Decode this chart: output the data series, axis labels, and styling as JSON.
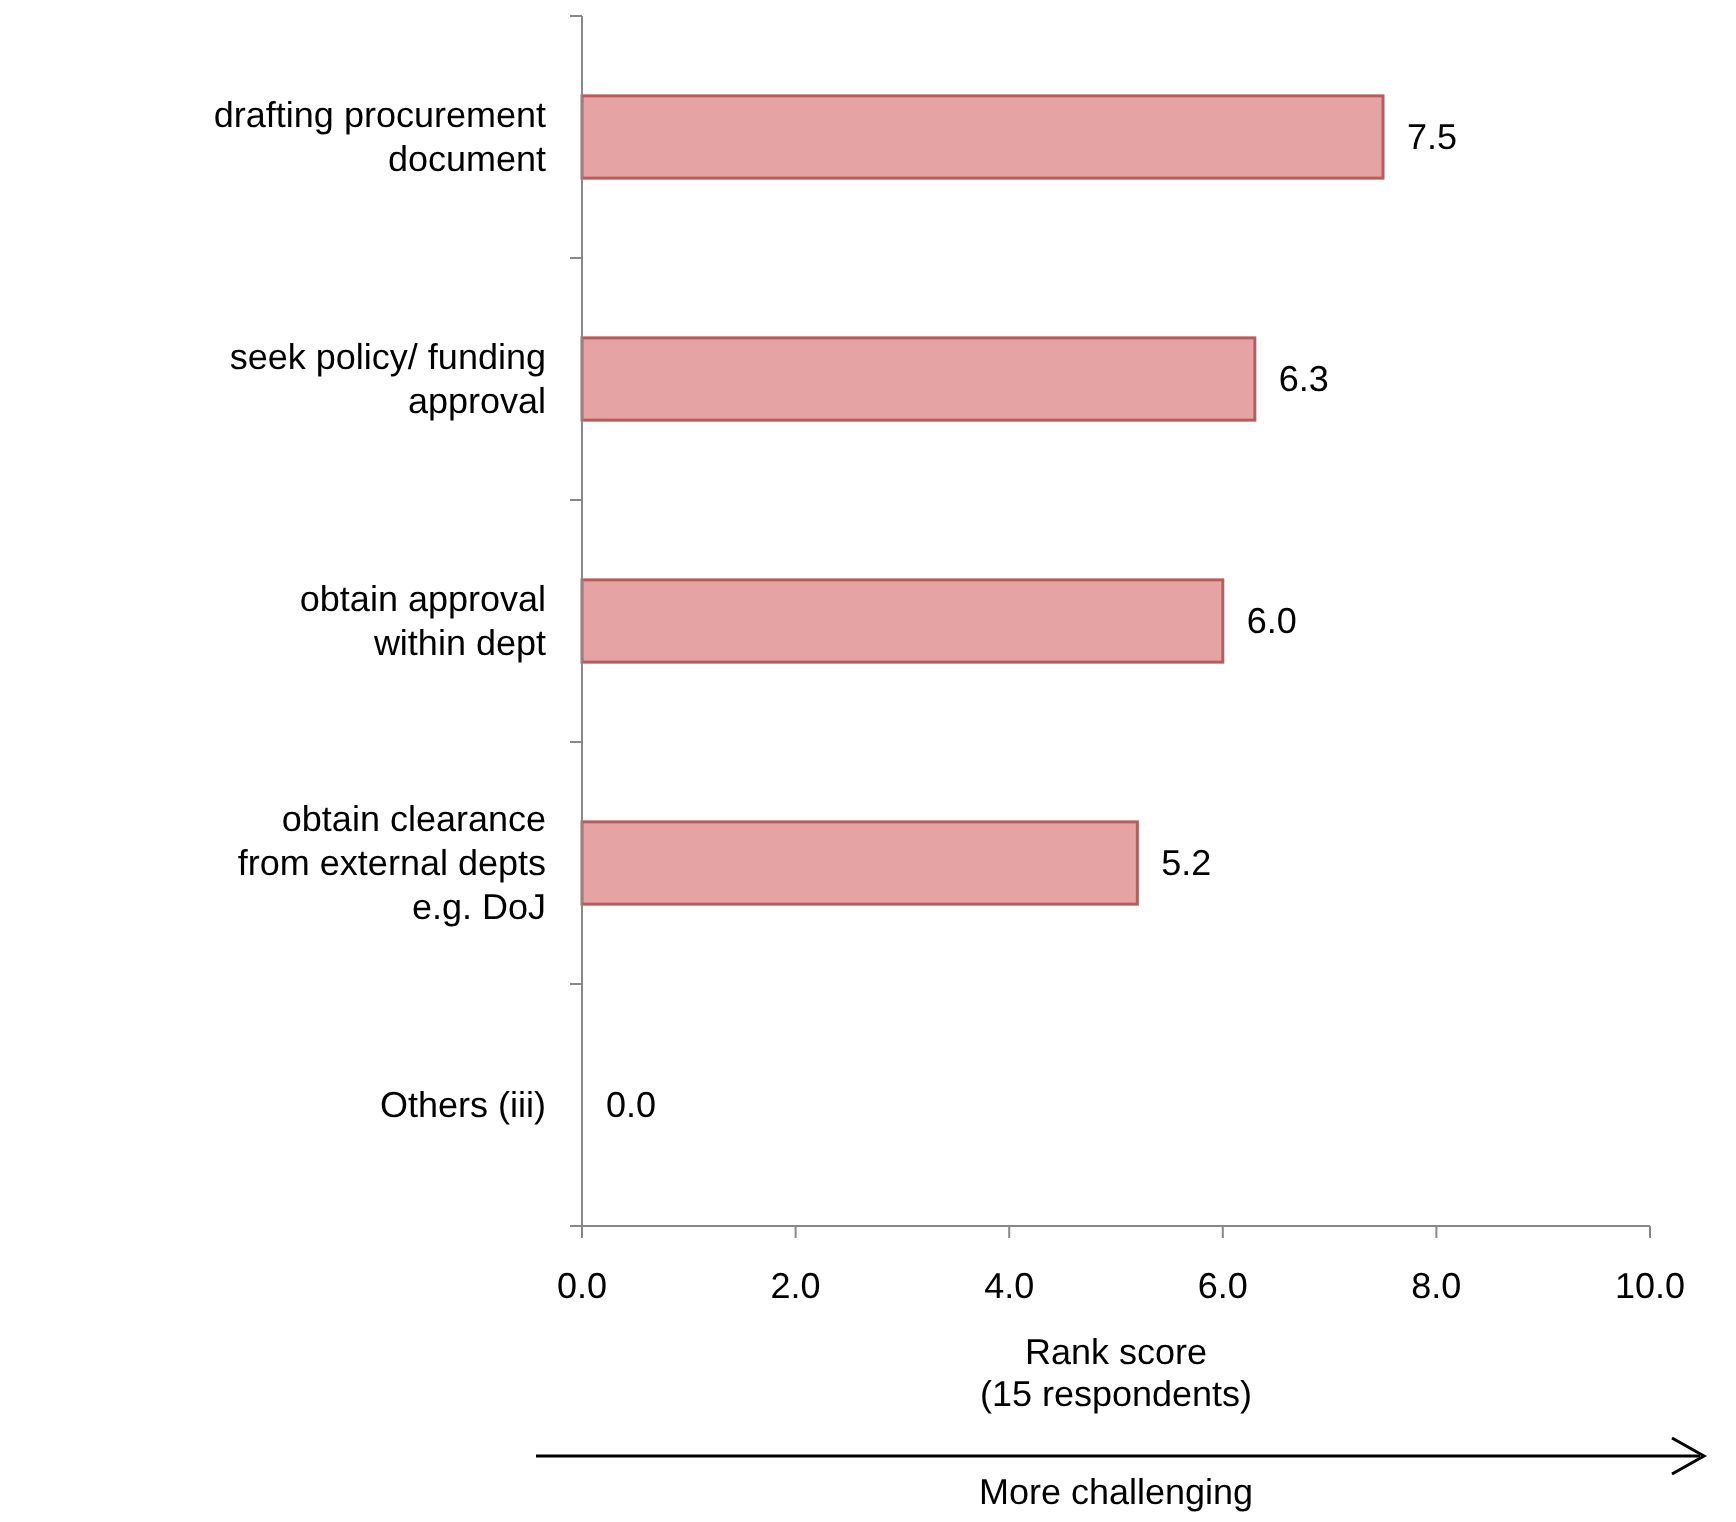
{
  "chart_data": {
    "type": "bar",
    "orientation": "horizontal",
    "categories": [
      "drafting procurement document",
      "seek policy/ funding approval",
      "obtain approval within dept",
      "obtain clearance from external depts e.g. DoJ",
      "Others (iii)"
    ],
    "values": [
      7.5,
      6.3,
      6.0,
      5.2,
      0.0
    ],
    "value_labels": [
      "7.5",
      "6.3",
      "6.0",
      "5.2",
      "0.0"
    ],
    "color": "#e6a3a3",
    "xlim": [
      0,
      10
    ],
    "xticks": [
      {
        "value": 0,
        "label": "0.0"
      },
      {
        "value": 2,
        "label": "2.0"
      },
      {
        "value": 4,
        "label": "4.0"
      },
      {
        "value": 6,
        "label": "6.0"
      },
      {
        "value": 8,
        "label": "8.0"
      },
      {
        "value": 10,
        "label": "10.0"
      }
    ],
    "xlabel": "Rank score\n(15 respondents)",
    "annotations": [
      "More challenging"
    ],
    "grid": false
  }
}
